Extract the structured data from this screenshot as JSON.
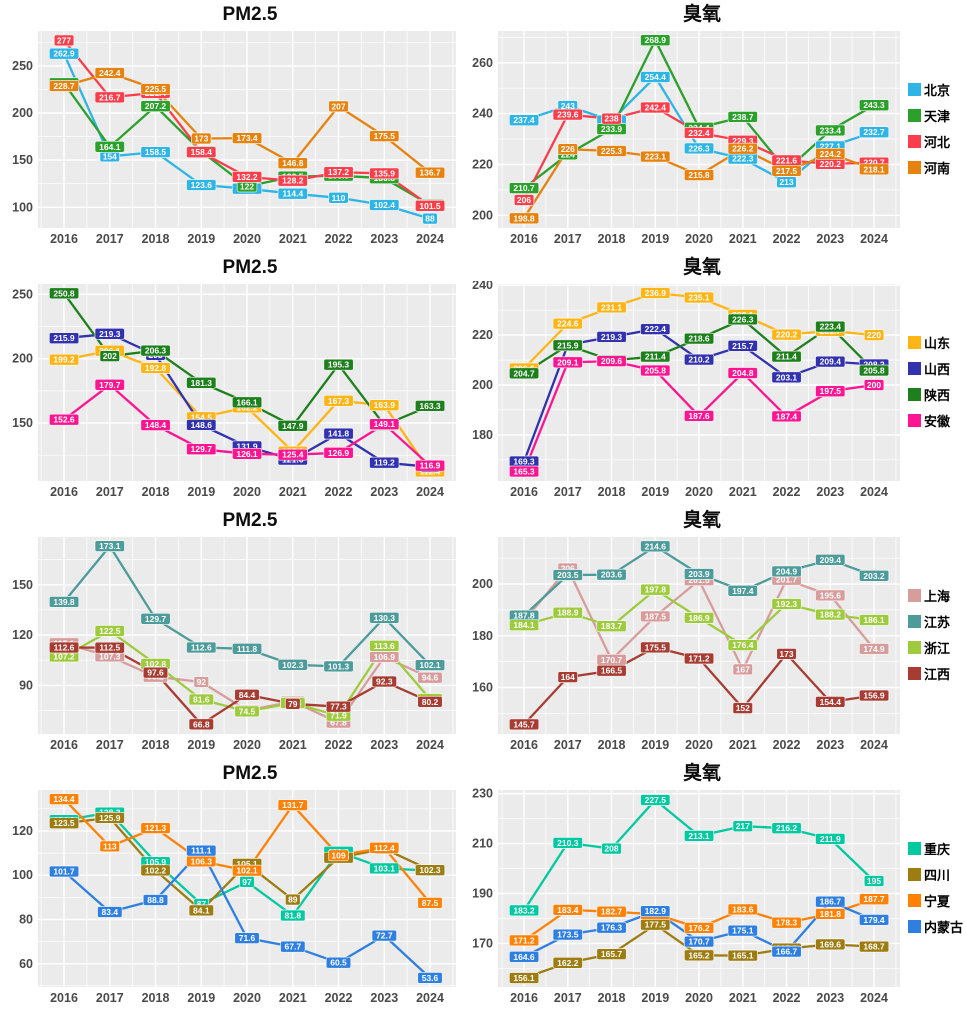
{
  "chart_data": [
    {
      "type": "line",
      "title": "PM2.5",
      "row": 1,
      "position": "left",
      "x": [
        2016,
        2017,
        2018,
        2019,
        2020,
        2021,
        2022,
        2023,
        2024
      ],
      "yticks": [
        100,
        150,
        200,
        250
      ],
      "ylim": [
        78,
        287
      ],
      "grid": true,
      "legend_position": "right-of-row",
      "series": [
        {
          "name": "北京",
          "color": "#2eb5e6",
          "values": [
            262.9,
            154,
            158.5,
            123.6,
            119.7,
            114.4,
            110,
            102.4,
            88
          ]
        },
        {
          "name": "天津",
          "color": "#2ba02b",
          "values": [
            231.5,
            164.1,
            207.2,
            159.3,
            122,
            132.5,
            133.5,
            130.8,
            102.5
          ]
        },
        {
          "name": "河北",
          "color": "#fb3e4b",
          "values": [
            277,
            216.7,
            221.4,
            158.4,
            132.2,
            128.2,
            137.2,
            135.9,
            101.5
          ]
        },
        {
          "name": "河南",
          "color": "#e6820e",
          "values": [
            228.7,
            242.4,
            225.5,
            173,
            173.4,
            146.8,
            207,
            175.5,
            136.7
          ]
        }
      ]
    },
    {
      "type": "line",
      "title": "臭氧",
      "row": 1,
      "position": "right",
      "x": [
        2016,
        2017,
        2018,
        2019,
        2020,
        2021,
        2022,
        2023,
        2024
      ],
      "yticks": [
        200,
        220,
        240,
        260
      ],
      "ylim": [
        195,
        272.5
      ],
      "grid": true,
      "series": [
        {
          "name": "北京",
          "color": "#2eb5e6",
          "values": [
            237.4,
            243,
            237.3,
            254.4,
            226.3,
            222.3,
            213,
            227.1,
            232.7
          ]
        },
        {
          "name": "天津",
          "color": "#2ba02b",
          "values": [
            210.7,
            224,
            233.9,
            268.9,
            234.4,
            238.7,
            217.7,
            233.4,
            243.3
          ]
        },
        {
          "name": "河北",
          "color": "#fb3e4b",
          "values": [
            206,
            239.6,
            238,
            242.4,
            232.4,
            229.3,
            221.6,
            220.2,
            220.7
          ]
        },
        {
          "name": "河南",
          "color": "#e6820e",
          "values": [
            198.8,
            226,
            225.3,
            223.1,
            215.8,
            226.2,
            217.5,
            224.2,
            218.1
          ]
        }
      ]
    },
    {
      "type": "line",
      "title": "PM2.5",
      "row": 2,
      "position": "left",
      "x": [
        2016,
        2017,
        2018,
        2019,
        2020,
        2021,
        2022,
        2023,
        2024
      ],
      "yticks": [
        150,
        200,
        250
      ],
      "ylim": [
        105,
        258
      ],
      "grid": true,
      "series": [
        {
          "name": "山东",
          "color": "#ffb516",
          "values": [
            199.2,
            206.1,
            192.8,
            154.5,
            162.2,
            127.8,
            167.3,
            163.9,
            112.4
          ]
        },
        {
          "name": "山西",
          "color": "#3232ae",
          "values": [
            215.9,
            219.3,
            203,
            148.6,
            131.9,
            121.6,
            141.8,
            119.2,
            116
          ]
        },
        {
          "name": "陕西",
          "color": "#1d801d",
          "values": [
            250.8,
            202,
            206.3,
            181.3,
            166.1,
            147.9,
            195.3,
            148.5,
            163.3
          ]
        },
        {
          "name": "安徽",
          "color": "#ff1591",
          "values": [
            152.6,
            179.7,
            148.4,
            129.7,
            126.1,
            125.4,
            126.9,
            149.1,
            116.9
          ]
        }
      ]
    },
    {
      "type": "line",
      "title": "臭氧",
      "row": 2,
      "position": "right",
      "x": [
        2016,
        2017,
        2018,
        2019,
        2020,
        2021,
        2022,
        2023,
        2024
      ],
      "yticks": [
        180,
        200,
        220,
        240
      ],
      "ylim": [
        161.5,
        240.5
      ],
      "grid": true,
      "series": [
        {
          "name": "山东",
          "color": "#ffb516",
          "values": [
            206.6,
            224.6,
            231.1,
            236.9,
            235.1,
            228.1,
            220.2,
            221.7,
            220
          ]
        },
        {
          "name": "山西",
          "color": "#3232ae",
          "values": [
            169.3,
            216.1,
            219.3,
            222.4,
            210.2,
            215.7,
            203.1,
            209.4,
            208.2
          ]
        },
        {
          "name": "陕西",
          "color": "#1d801d",
          "values": [
            204.7,
            215.9,
            209.9,
            211.4,
            218.6,
            226.3,
            211.4,
            223.4,
            205.8
          ]
        },
        {
          "name": "安徽",
          "color": "#ff1591",
          "values": [
            165.3,
            209.1,
            209.6,
            205.8,
            187.6,
            204.8,
            187.4,
            197.5,
            200
          ]
        }
      ]
    },
    {
      "type": "line",
      "title": "PM2.5",
      "row": 3,
      "position": "left",
      "x": [
        2016,
        2017,
        2018,
        2019,
        2020,
        2021,
        2022,
        2023,
        2024
      ],
      "yticks": [
        90,
        120,
        150
      ],
      "ylim": [
        61,
        178.5
      ],
      "grid": true,
      "series": [
        {
          "name": "上海",
          "color": "#d79c9c",
          "values": [
            115.1,
            107.3,
            95.2,
            92,
            75.1,
            80.3,
            67.8,
            106.9,
            94.6
          ]
        },
        {
          "name": "江苏",
          "color": "#4d9b9b",
          "values": [
            139.8,
            173.1,
            129.7,
            112.6,
            111.8,
            102.3,
            101.3,
            130.3,
            102.1
          ]
        },
        {
          "name": "浙江",
          "color": "#9ecb3d",
          "values": [
            107.2,
            122.5,
            102.8,
            81.6,
            74.5,
            79.5,
            71.9,
            113.6,
            81.9
          ]
        },
        {
          "name": "江西",
          "color": "#a63c32",
          "values": [
            112.6,
            112.5,
            97.6,
            66.8,
            84.4,
            79,
            77.3,
            92.3,
            80.2
          ]
        }
      ]
    },
    {
      "type": "line",
      "title": "臭氧",
      "row": 3,
      "position": "right",
      "x": [
        2016,
        2017,
        2018,
        2019,
        2020,
        2021,
        2022,
        2023,
        2024
      ],
      "yticks": [
        160,
        180,
        200
      ],
      "ylim": [
        142,
        218.2
      ],
      "grid": true,
      "series": [
        {
          "name": "上海",
          "color": "#d79c9c",
          "values": [
            185.8,
            206,
            170.7,
            187.5,
            201.5,
            167,
            201.7,
            195.6,
            174.9
          ]
        },
        {
          "name": "江苏",
          "color": "#4d9b9b",
          "values": [
            187.8,
            203.5,
            203.6,
            214.6,
            203.9,
            197.4,
            204.9,
            209.4,
            203.2
          ]
        },
        {
          "name": "浙江",
          "color": "#9ecb3d",
          "values": [
            184.1,
            188.9,
            183.7,
            197.8,
            186.9,
            176.4,
            192.3,
            188.2,
            186.1
          ]
        },
        {
          "name": "江西",
          "color": "#a63c32",
          "values": [
            145.7,
            164,
            166.5,
            175.5,
            171.2,
            152,
            173,
            154.4,
            156.9
          ]
        }
      ]
    },
    {
      "type": "line",
      "title": "PM2.5",
      "row": 4,
      "position": "left",
      "x": [
        2016,
        2017,
        2018,
        2019,
        2020,
        2021,
        2022,
        2023,
        2024
      ],
      "yticks": [
        60,
        80,
        100,
        120
      ],
      "ylim": [
        49.5,
        138.5
      ],
      "grid": true,
      "series": [
        {
          "name": "重庆",
          "color": "#00c8a0",
          "values": [
            124.9,
            128.3,
            105.9,
            87,
            97,
            81.8,
            110.6,
            103.1,
            102.1
          ]
        },
        {
          "name": "四川",
          "color": "#9d7d12",
          "values": [
            123.5,
            125.9,
            102.2,
            84.1,
            105.1,
            89,
            107.9,
            112,
            102.3
          ]
        },
        {
          "name": "宁夏",
          "color": "#ff8207",
          "values": [
            134.4,
            113,
            121.3,
            106.3,
            102.1,
            131.7,
            109,
            112.4,
            87.5
          ]
        },
        {
          "name": "内蒙古",
          "color": "#2f7fe0",
          "values": [
            101.7,
            83.4,
            88.8,
            111.1,
            71.6,
            67.7,
            60.5,
            72.7,
            53.6
          ]
        }
      ]
    },
    {
      "type": "line",
      "title": "臭氧",
      "row": 4,
      "position": "right",
      "x": [
        2016,
        2017,
        2018,
        2019,
        2020,
        2021,
        2022,
        2023,
        2024
      ],
      "yticks": [
        170,
        190,
        210,
        230
      ],
      "ylim": [
        152.5,
        231.5
      ],
      "grid": true,
      "series": [
        {
          "name": "重庆",
          "color": "#00c8a0",
          "values": [
            183.2,
            210.3,
            208,
            227.5,
            213.1,
            217,
            216.2,
            211.9,
            195
          ]
        },
        {
          "name": "四川",
          "color": "#9d7d12",
          "values": [
            156.1,
            162.2,
            165.7,
            177.5,
            165.2,
            165.1,
            167.9,
            169.6,
            168.7
          ]
        },
        {
          "name": "宁夏",
          "color": "#ff8207",
          "values": [
            171.2,
            183.4,
            182.7,
            181.7,
            176.2,
            183.6,
            178.3,
            181.8,
            187.7
          ]
        },
        {
          "name": "内蒙古",
          "color": "#2f7fe0",
          "values": [
            164.6,
            173.5,
            176.3,
            182.9,
            170.7,
            175.1,
            166.7,
            186.7,
            179.4
          ]
        }
      ]
    }
  ],
  "legends": [
    {
      "items": [
        {
          "label": "北京",
          "color": "#2eb5e6"
        },
        {
          "label": "天津",
          "color": "#2ba02b"
        },
        {
          "label": "河北",
          "color": "#fb3e4b"
        },
        {
          "label": "河南",
          "color": "#e6820e"
        }
      ]
    },
    {
      "items": [
        {
          "label": "山东",
          "color": "#ffb516"
        },
        {
          "label": "山西",
          "color": "#3232ae"
        },
        {
          "label": "陕西",
          "color": "#1d801d"
        },
        {
          "label": "安徽",
          "color": "#ff1591"
        }
      ]
    },
    {
      "items": [
        {
          "label": "上海",
          "color": "#d79c9c"
        },
        {
          "label": "江苏",
          "color": "#4d9b9b"
        },
        {
          "label": "浙江",
          "color": "#9ecb3d"
        },
        {
          "label": "江西",
          "color": "#a63c32"
        }
      ]
    },
    {
      "items": [
        {
          "label": "重庆",
          "color": "#00c8a0"
        },
        {
          "label": "四川",
          "color": "#9d7d12"
        },
        {
          "label": "宁夏",
          "color": "#ff8207"
        },
        {
          "label": "内蒙古",
          "color": "#2f7fe0"
        }
      ]
    }
  ],
  "style": {
    "panel_bg": "#ebebeb",
    "grid_color": "#ffffff",
    "axis_text_color": "#4a4a4a",
    "title_color": "#0d0d0d",
    "label_text_color": "#ffffff"
  }
}
